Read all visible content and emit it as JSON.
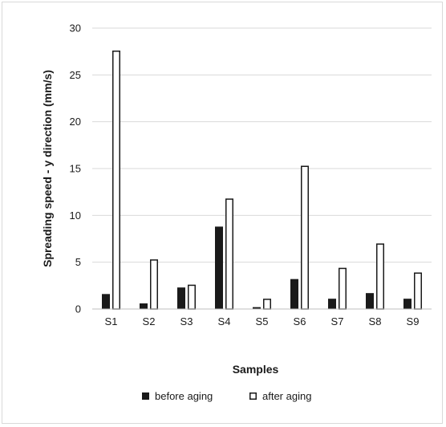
{
  "chart_data": {
    "type": "bar",
    "title": "",
    "xlabel": "Samples",
    "ylabel": "Spreading speed - y direction (mm/s)",
    "categories": [
      "S1",
      "S2",
      "S3",
      "S4",
      "S5",
      "S6",
      "S7",
      "S8",
      "S9"
    ],
    "series": [
      {
        "name": "before aging",
        "color": "#1a1a1a",
        "values": [
          1.6,
          0.6,
          2.3,
          8.8,
          0.2,
          3.2,
          1.1,
          1.7,
          1.1
        ]
      },
      {
        "name": "after aging",
        "color": "#ffffff",
        "values": [
          27.6,
          5.3,
          2.6,
          11.8,
          1.1,
          15.3,
          4.4,
          7.0,
          3.9
        ]
      }
    ],
    "ylim": [
      0,
      30
    ],
    "yticks": [
      0,
      5,
      10,
      15,
      20,
      25,
      30
    ],
    "grid": true,
    "legend_position": "bottom"
  }
}
